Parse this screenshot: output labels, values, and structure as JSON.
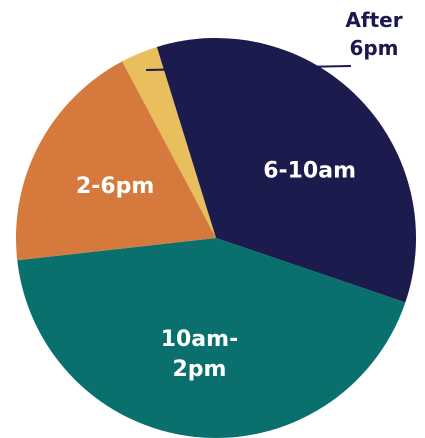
{
  "chart_data": {
    "type": "pie",
    "start_angle_deg": -28,
    "direction": "clockwise",
    "slices": [
      {
        "label": [
          "After",
          "6pm"
        ],
        "value": 3,
        "color": "#E9BE5C",
        "label_color": "#1B1A4F",
        "callout": true
      },
      {
        "label": [
          "6-10am"
        ],
        "value": 35,
        "color": "#1C1B4E",
        "label_color": "#ffffff",
        "callout": false
      },
      {
        "label": [
          "10am-",
          "2pm"
        ],
        "value": 43,
        "color": "#09706E",
        "label_color": "#ffffff",
        "callout": false
      },
      {
        "label": [
          "2-6pm"
        ],
        "value": 19,
        "color": "#D57A3C",
        "label_color": "#ffffff",
        "callout": false
      }
    ]
  }
}
